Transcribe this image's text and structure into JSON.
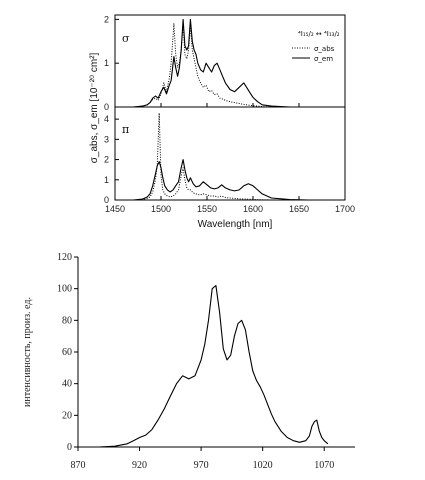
{
  "chart_data": [
    {
      "type": "line",
      "panel": "top",
      "panel_label": "σ",
      "x": [
        1460,
        1470,
        1480,
        1485,
        1488,
        1491,
        1494,
        1497,
        1500,
        1503,
        1506,
        1509,
        1511,
        1514,
        1516,
        1518,
        1520,
        1522,
        1524,
        1526,
        1528,
        1530,
        1532,
        1534,
        1536,
        1538,
        1540,
        1543,
        1546,
        1549,
        1552,
        1555,
        1558,
        1561,
        1564,
        1567,
        1570,
        1575,
        1580,
        1585,
        1590,
        1593,
        1596,
        1600,
        1605,
        1610,
        1620,
        1640,
        1660
      ],
      "series": [
        {
          "name": "σ_abs",
          "style": "dotted",
          "values": [
            0,
            0,
            0.02,
            0.05,
            0.1,
            0.17,
            0.2,
            0.15,
            0.3,
            0.55,
            0.35,
            0.65,
            1.0,
            1.9,
            1.2,
            0.9,
            1.0,
            1.3,
            1.9,
            1.2,
            1.1,
            1.3,
            1.85,
            1.3,
            1.1,
            0.9,
            0.7,
            0.55,
            0.45,
            0.5,
            0.35,
            0.38,
            0.28,
            0.3,
            0.2,
            0.18,
            0.15,
            0.12,
            0.1,
            0.08,
            0.06,
            0.05,
            0.04,
            0.03,
            0.02,
            0.01,
            0,
            0,
            0
          ]
        },
        {
          "name": "σ_em",
          "style": "solid",
          "values": [
            0,
            0,
            0.02,
            0.05,
            0.1,
            0.2,
            0.25,
            0.2,
            0.35,
            0.45,
            0.3,
            0.5,
            0.6,
            1.15,
            0.9,
            0.7,
            0.9,
            1.3,
            2.0,
            1.4,
            1.3,
            1.4,
            2.0,
            1.5,
            1.3,
            1.2,
            1.0,
            0.85,
            0.8,
            1.0,
            0.9,
            0.8,
            0.95,
            1.0,
            0.85,
            0.7,
            0.55,
            0.4,
            0.35,
            0.45,
            0.55,
            0.45,
            0.35,
            0.22,
            0.12,
            0.05,
            0.02,
            0,
            0
          ]
        }
      ],
      "ylim": [
        0,
        2.1
      ],
      "yticks": [
        0,
        1,
        2
      ],
      "legend": {
        "title": "⁴I₁₅/₂ ↔ ⁴I₁₃/₂",
        "entries": [
          "σ_abs",
          "σ_em"
        ]
      }
    },
    {
      "type": "line",
      "panel": "middle",
      "panel_label": "π",
      "x": [
        1460,
        1470,
        1480,
        1485,
        1488,
        1491,
        1494,
        1496,
        1498,
        1500,
        1502,
        1504,
        1507,
        1510,
        1513,
        1516,
        1519,
        1522,
        1524,
        1526,
        1528,
        1530,
        1532,
        1535,
        1538,
        1542,
        1546,
        1550,
        1554,
        1558,
        1562,
        1566,
        1570,
        1575,
        1580,
        1585,
        1590,
        1595,
        1600,
        1605,
        1610,
        1620,
        1640,
        1660
      ],
      "series": [
        {
          "name": "σ_abs",
          "style": "dotted",
          "values": [
            0,
            0,
            0.03,
            0.08,
            0.15,
            0.4,
            1.0,
            1.8,
            4.3,
            1.2,
            0.5,
            0.3,
            0.2,
            0.15,
            0.2,
            0.3,
            0.5,
            1.2,
            1.6,
            1.0,
            0.6,
            0.5,
            0.5,
            0.35,
            0.3,
            0.25,
            0.3,
            0.25,
            0.2,
            0.2,
            0.15,
            0.2,
            0.12,
            0.1,
            0.08,
            0.06,
            0.05,
            0.04,
            0.03,
            0.02,
            0.01,
            0,
            0,
            0
          ]
        },
        {
          "name": "σ_em",
          "style": "solid",
          "values": [
            0,
            0,
            0.05,
            0.15,
            0.3,
            0.7,
            1.3,
            1.7,
            1.9,
            1.6,
            1.1,
            0.7,
            0.5,
            0.4,
            0.5,
            0.7,
            0.9,
            1.6,
            2.0,
            1.5,
            1.1,
            0.9,
            1.1,
            0.8,
            0.65,
            0.7,
            0.9,
            0.75,
            0.6,
            0.55,
            0.6,
            0.75,
            0.6,
            0.5,
            0.45,
            0.5,
            0.7,
            0.8,
            0.7,
            0.5,
            0.3,
            0.1,
            0.02,
            0
          ]
        }
      ],
      "ylim": [
        0,
        4.6
      ],
      "yticks": [
        0,
        1,
        2,
        3,
        4
      ],
      "xlim": [
        1450,
        1700
      ],
      "xticks": [
        1450,
        1500,
        1550,
        1600,
        1650,
        1700
      ],
      "xlabel": "Wavelength [nm]",
      "ylabel": "σ_abs, σ_em [10⁻²⁰ cm²]"
    },
    {
      "type": "line",
      "panel": "bottom",
      "x": [
        887,
        900,
        910,
        915,
        920,
        925,
        930,
        935,
        940,
        945,
        950,
        955,
        960,
        965,
        970,
        973,
        976,
        979,
        982,
        985,
        988,
        991,
        994,
        997,
        1000,
        1003,
        1006,
        1009,
        1012,
        1015,
        1018,
        1021,
        1024,
        1027,
        1030,
        1035,
        1040,
        1045,
        1050,
        1055,
        1058,
        1060,
        1062,
        1064,
        1066,
        1068,
        1070,
        1073
      ],
      "series": [
        {
          "name": "",
          "style": "solid",
          "values": [
            0,
            0.5,
            2,
            4,
            6,
            7.5,
            11,
            17,
            24,
            32,
            40,
            45,
            43,
            45,
            55,
            65,
            80,
            100,
            102,
            85,
            62,
            55,
            58,
            70,
            78,
            80,
            74,
            60,
            48,
            42,
            38,
            33,
            27,
            21,
            16,
            10,
            6,
            4,
            3,
            4,
            7,
            13,
            16,
            17,
            10,
            6,
            4,
            2
          ]
        }
      ],
      "xlim": [
        870,
        1095
      ],
      "xticks": [
        870,
        920,
        970,
        1020,
        1070
      ],
      "ylim": [
        0,
        120
      ],
      "yticks": [
        0,
        20,
        40,
        60,
        80,
        100,
        120
      ],
      "ylabel": "интенсивность, произ. ед."
    }
  ]
}
